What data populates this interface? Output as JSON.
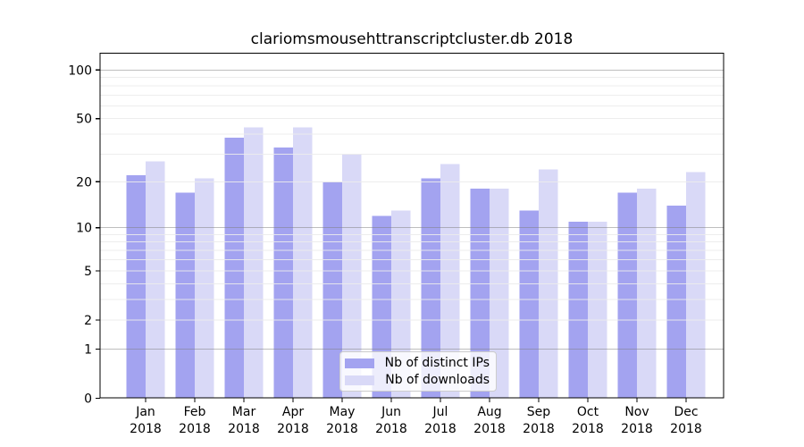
{
  "chart_data": {
    "type": "bar",
    "title": "clariomsmousehttranscriptcluster.db 2018",
    "scale": "log10(1+x)",
    "grid": true,
    "legend_position": "bottom-center",
    "categories": [
      "Jan",
      "Feb",
      "Mar",
      "Apr",
      "May",
      "Jun",
      "Jul",
      "Aug",
      "Sep",
      "Oct",
      "Nov",
      "Dec"
    ],
    "x_tick_line2": "2018",
    "series": [
      {
        "name": "Nb of distinct IPs",
        "color": "#a3a3f0",
        "values": [
          22,
          17,
          38,
          33,
          20,
          12,
          21,
          18,
          13,
          11,
          17,
          14
        ]
      },
      {
        "name": "Nb of downloads",
        "color": "#d9d9f7",
        "values": [
          27,
          21,
          44,
          44,
          30,
          13,
          26,
          18,
          24,
          11,
          18,
          23
        ]
      }
    ],
    "y_tick_labels": [
      0,
      1,
      2,
      5,
      10,
      20,
      50,
      100
    ],
    "y_major_gridlines": [
      1,
      10,
      100
    ],
    "y_minor_gridlines": [
      2,
      3,
      4,
      5,
      6,
      7,
      8,
      9,
      20,
      30,
      40,
      50,
      60,
      70,
      80,
      90
    ],
    "ylim": [
      0,
      130
    ],
    "colors": {
      "axis": "#000000",
      "major_grid": "rgba(125,125,125,0.5)",
      "minor_grid": "rgba(235,235,235,0.9)",
      "legend_border": "#cccccc"
    }
  }
}
